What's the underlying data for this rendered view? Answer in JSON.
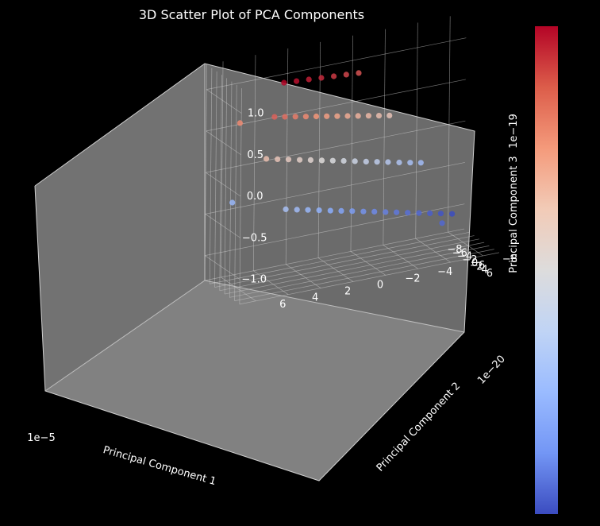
{
  "chart_data": {
    "type": "scatter",
    "title": "3D Scatter Plot of PCA Components",
    "xlabel": "Principal Component 1",
    "ylabel": "Principal Component 2",
    "zlabel": "Principal Component 3",
    "x_offset_text": "1e−5",
    "y_offset_text": "1e−20",
    "z_offset_text": "1e−19",
    "x_ticks": [
      "−8",
      "−6",
      "−4",
      "−2",
      "0",
      "2",
      "4",
      "6"
    ],
    "y_ticks": [
      "−8",
      "−6",
      "−4",
      "−2",
      "0",
      "2",
      "4",
      "6"
    ],
    "z_ticks": [
      "−1.0",
      "−0.5",
      "0.0",
      "0.5",
      "1.0"
    ],
    "xlim": [
      -8,
      6
    ],
    "ylim": [
      -9,
      7
    ],
    "zlim": [
      -1.3,
      1.3
    ],
    "colormap": "coolwarm",
    "colorbar_colors": [
      "#b40426",
      "#dc5d4a",
      "#f49a7b",
      "#f2cbb7",
      "#dddcdc",
      "#c0d4f5",
      "#9abbff",
      "#7396f5",
      "#3b4cc0"
    ],
    "grid": true,
    "background_color": "#000000",
    "pane_color": "#808080",
    "series": [
      {
        "x": [
          -6.5,
          -5.8,
          -5.0,
          -4.2,
          -3.5,
          -2.8,
          -2.0,
          -1.3,
          -0.5,
          0.2,
          1.0,
          1.8,
          2.5,
          3.2,
          4.0,
          4.7,
          -6.2,
          -5.3,
          -4.5,
          -3.8,
          -3.0,
          -2.2,
          -1.5,
          -0.8,
          0.0,
          0.8,
          1.5,
          2.3,
          3.0,
          3.8,
          4.5,
          -6.0,
          -5.0,
          -4.0,
          -3.0,
          -2.0,
          -1.0,
          0.0,
          1.0,
          2.0,
          3.0,
          4.0,
          5.0,
          -5.5,
          -4.0,
          -2.5,
          -1.0,
          0.5,
          2.0,
          3.5,
          -7.0,
          -1.0,
          2.5
        ],
        "y": [
          -8.0,
          -7.2,
          -6.4,
          -5.6,
          -4.8,
          -4.0,
          -3.2,
          -2.4,
          -1.6,
          -0.8,
          0.0,
          0.8,
          1.6,
          2.4,
          3.2,
          4.0,
          -6.0,
          -5.2,
          -4.4,
          -3.6,
          -2.8,
          -2.0,
          -1.2,
          -0.4,
          0.4,
          1.2,
          2.0,
          2.8,
          3.6,
          4.4,
          5.2,
          -4.0,
          -3.2,
          -2.4,
          -1.6,
          -0.8,
          0.0,
          0.8,
          1.6,
          2.4,
          3.2,
          4.0,
          4.8,
          -2.0,
          -1.0,
          0.0,
          1.0,
          2.0,
          3.0,
          4.0,
          5.5,
          6.0,
          -6.0
        ],
        "z": [
          -1.05,
          -1.0,
          -0.95,
          -0.9,
          -0.85,
          -0.8,
          -0.75,
          -0.7,
          -0.65,
          -0.6,
          -0.55,
          -0.5,
          -0.45,
          -0.4,
          -0.35,
          -0.3,
          -0.35,
          -0.3,
          -0.25,
          -0.2,
          -0.15,
          -0.1,
          -0.05,
          0.0,
          0.05,
          0.1,
          0.15,
          0.2,
          0.25,
          0.3,
          0.35,
          0.3,
          0.35,
          0.4,
          0.45,
          0.5,
          0.55,
          0.6,
          0.65,
          0.7,
          0.75,
          0.8,
          0.85,
          0.9,
          0.95,
          1.0,
          1.05,
          1.1,
          1.15,
          1.2,
          -0.4,
          0.7,
          -0.9
        ]
      }
    ]
  }
}
